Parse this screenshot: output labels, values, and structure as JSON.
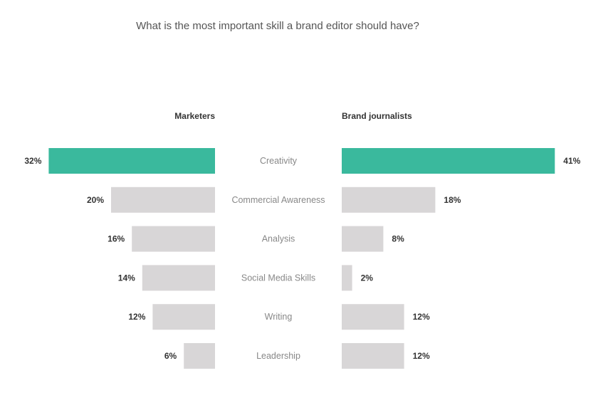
{
  "chart_data": {
    "type": "bar",
    "title": "What is the most important skill a brand editor should have?",
    "categories": [
      "Creativity",
      "Commercial Awareness",
      "Analysis",
      "Social Media Skills",
      "Writing",
      "Leadership"
    ],
    "series": [
      {
        "name": "Marketers",
        "values": [
          32,
          20,
          16,
          14,
          12,
          6
        ],
        "labels": [
          "32%",
          "20%",
          "16%",
          "14%",
          "12%",
          "6%"
        ]
      },
      {
        "name": "Brand journalists",
        "values": [
          41,
          18,
          8,
          2,
          12,
          12
        ],
        "labels": [
          "41%",
          "18%",
          "8%",
          "2%",
          "12%",
          "12%"
        ]
      }
    ],
    "colors": {
      "highlight": "#3ab99d",
      "default": "#d8d6d7"
    },
    "highlight_category": "Creativity",
    "unit": "%",
    "layout": "butterfly"
  }
}
